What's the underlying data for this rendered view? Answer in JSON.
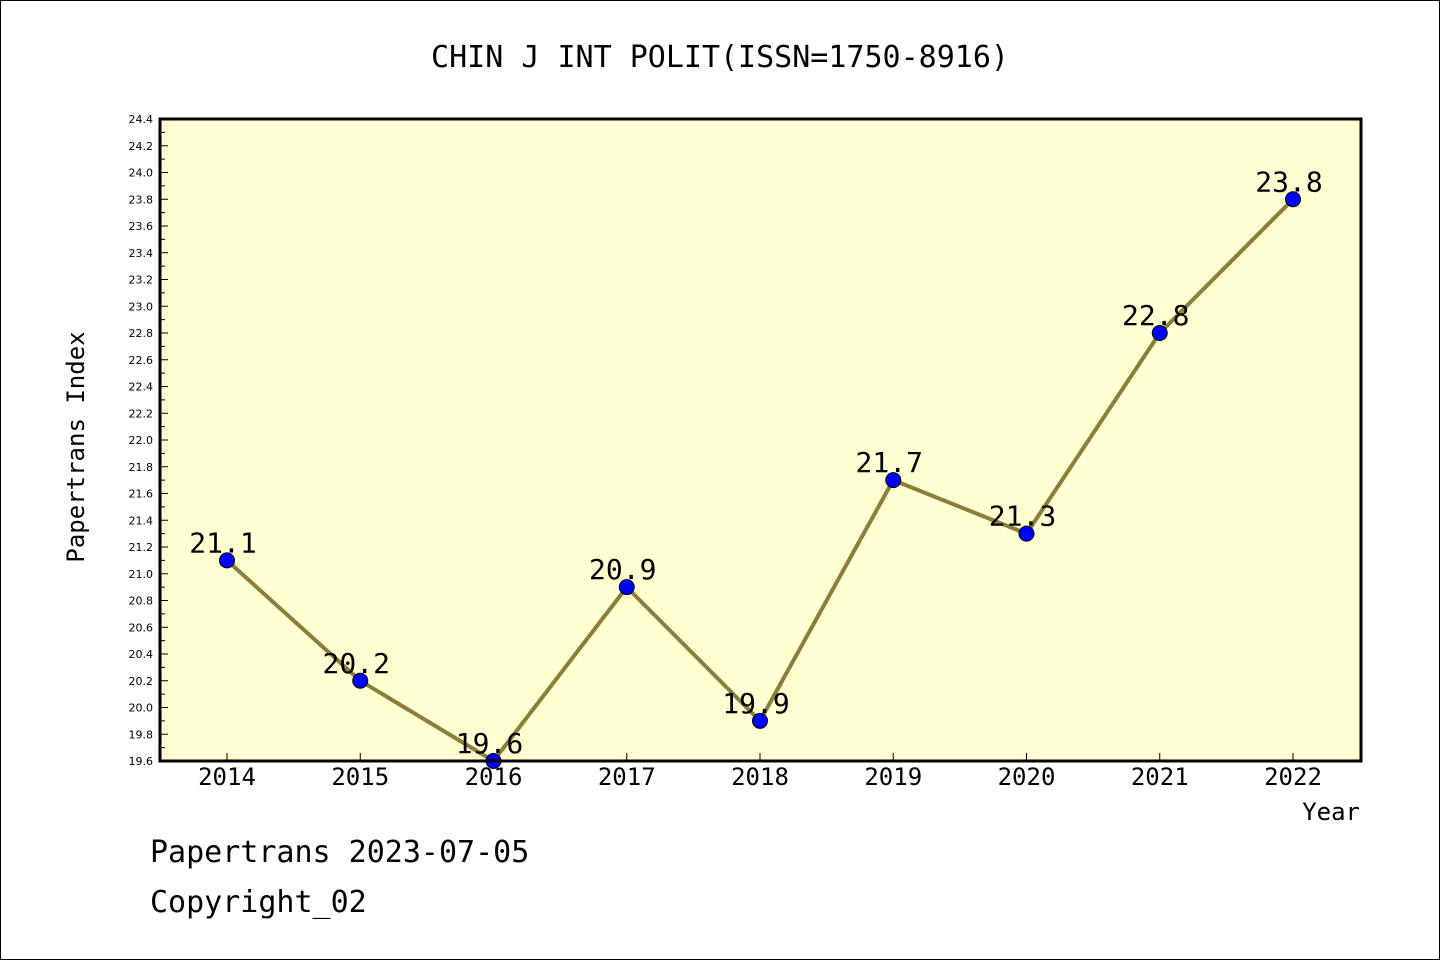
{
  "footer": {
    "line1": "Papertrans 2023-07-05",
    "line2": "Copyright_02"
  },
  "colors": {
    "plot_background": "#ffffd2",
    "line": "#8b7d3a",
    "marker": "#0000ff"
  },
  "chart_data": {
    "type": "line",
    "title": "CHIN J INT POLIT(ISSN=1750-8916)",
    "xlabel": "Year",
    "ylabel": "Papertrans Index",
    "categories": [
      "2014",
      "2015",
      "2016",
      "2017",
      "2018",
      "2019",
      "2020",
      "2021",
      "2022"
    ],
    "series": [
      {
        "values": [
          21.1,
          20.2,
          19.6,
          20.9,
          19.9,
          21.7,
          21.3,
          22.8,
          23.8
        ]
      }
    ],
    "data_labels": [
      "21.1",
      "20.2",
      "19.6",
      "20.9",
      "19.9",
      "21.7",
      "21.3",
      "22.8",
      "23.8"
    ],
    "ylim": [
      19.6,
      24.4
    ],
    "yticks": [
      "19.6",
      "19.8",
      "20.0",
      "20.2",
      "20.4",
      "20.6",
      "20.8",
      "21.0",
      "21.2",
      "21.4",
      "21.6",
      "21.8",
      "22.0",
      "22.2",
      "22.4",
      "22.6",
      "22.8",
      "23.0",
      "23.2",
      "23.4",
      "23.6",
      "23.8",
      "24.0",
      "24.2",
      "24.4"
    ],
    "grid": false,
    "legend": "none"
  }
}
